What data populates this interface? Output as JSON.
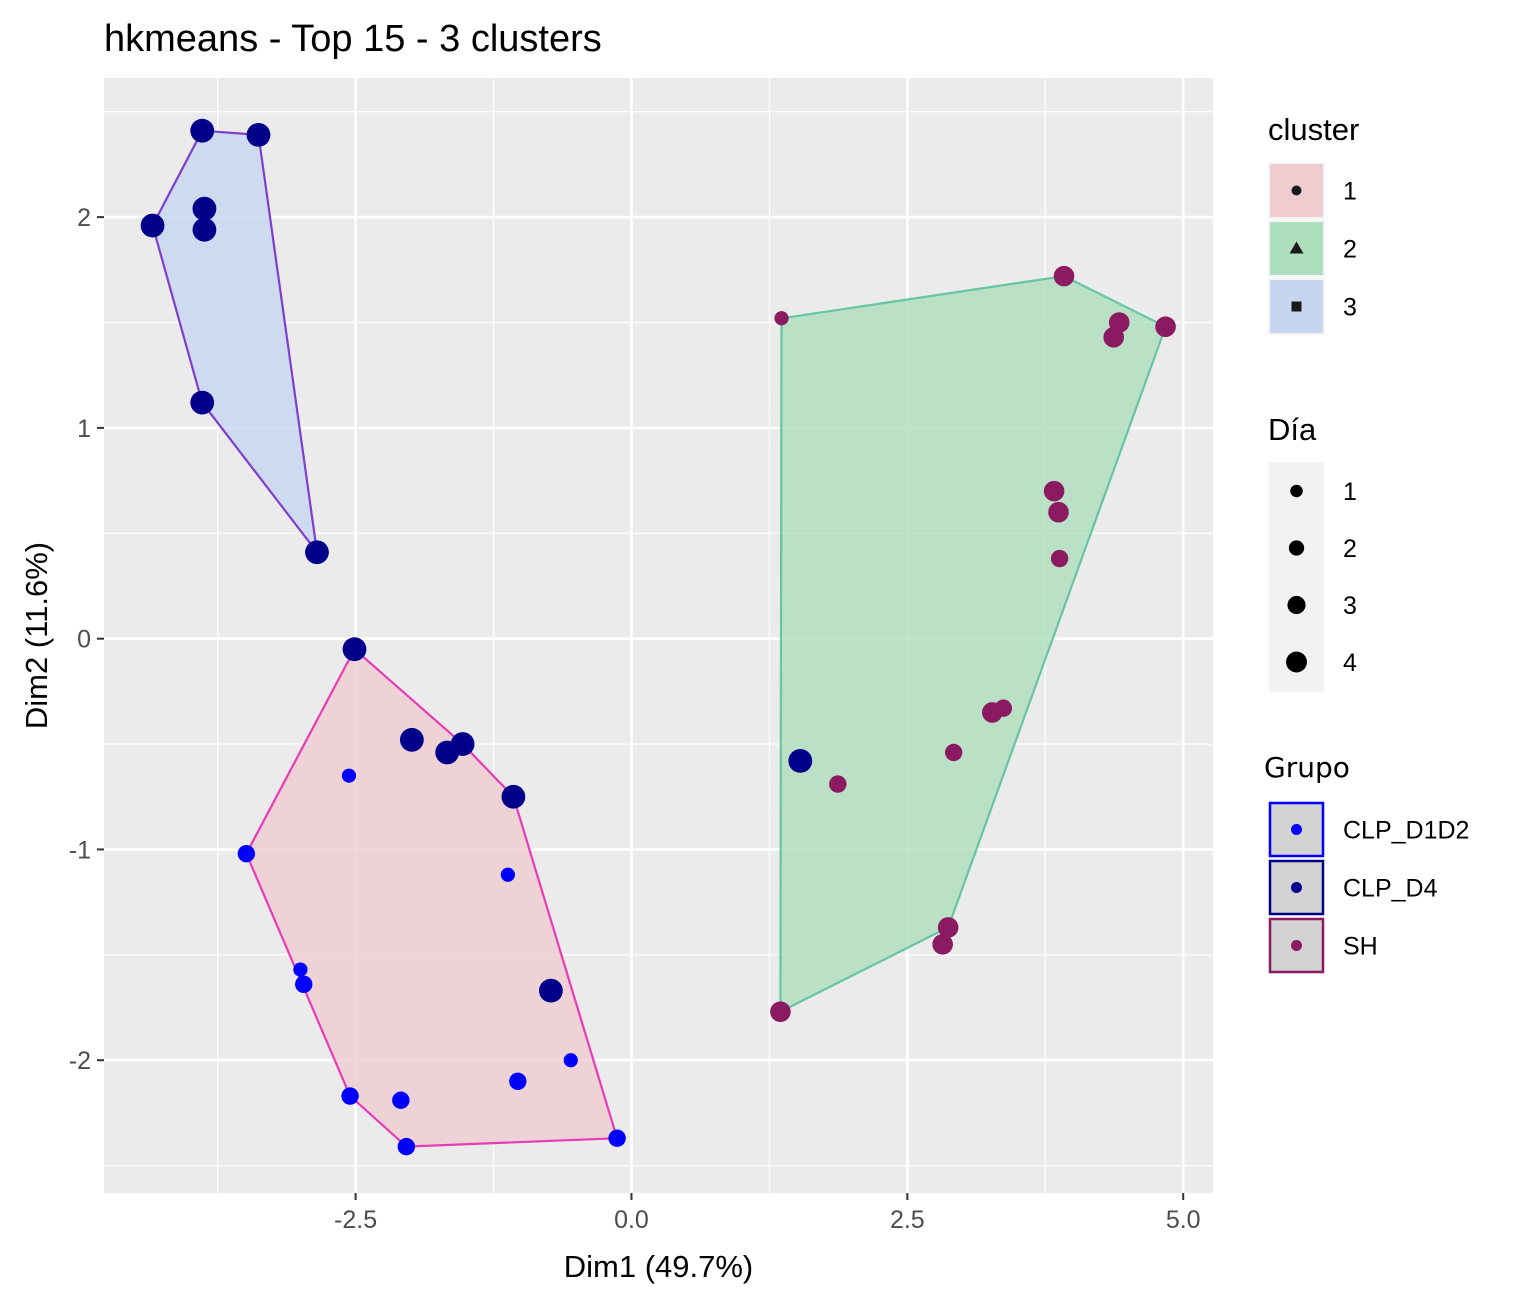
{
  "chart_data": {
    "type": "scatter",
    "title": "hkmeans - Top 15 - 3 clusters",
    "xlabel": "Dim1 (49.7%)",
    "ylabel": "Dim2 (11.6%)",
    "xlim": [
      -4.78,
      5.27
    ],
    "ylim": [
      -2.63,
      2.66
    ],
    "x_ticks": [
      -2.5,
      0.0,
      2.5,
      5.0
    ],
    "x_tick_labels": [
      "-2.5",
      "0.0",
      "2.5",
      "5.0"
    ],
    "y_ticks": [
      -2,
      -1,
      0,
      1,
      2
    ],
    "y_tick_labels": [
      "-2",
      "-1",
      "0",
      "1",
      "2"
    ],
    "grid": true,
    "legend_placement": "right",
    "colors": {
      "CLP_D1D2": "#0000ff",
      "CLP_D4": "#00008b",
      "SH": "#8b1a62",
      "cluster_1_fill": "#f0cccf",
      "cluster_1_line": "#e83bb6",
      "cluster_2_fill": "#aedfbd",
      "cluster_2_line": "#66c5a3",
      "cluster_3_fill": "#c6d6f0",
      "cluster_3_line": "#7f3ecb",
      "panel": "#ebebeb"
    },
    "hulls": [
      {
        "cluster": "1",
        "points": [
          [
            -2.51,
            -0.05
          ],
          [
            -1.53,
            -0.5
          ],
          [
            -1.07,
            -0.75
          ],
          [
            -0.13,
            -2.37
          ],
          [
            -2.04,
            -2.41
          ],
          [
            -2.55,
            -2.17
          ],
          [
            -3.49,
            -1.02
          ]
        ]
      },
      {
        "cluster": "2",
        "points": [
          [
            1.36,
            1.52
          ],
          [
            3.92,
            1.72
          ],
          [
            4.84,
            1.48
          ],
          [
            2.87,
            -1.37
          ],
          [
            1.35,
            -1.77
          ]
        ]
      },
      {
        "cluster": "3",
        "points": [
          [
            -3.89,
            2.41
          ],
          [
            -3.38,
            2.39
          ],
          [
            -2.85,
            0.41
          ],
          [
            -3.89,
            1.12
          ],
          [
            -4.34,
            1.96
          ]
        ]
      }
    ],
    "points": [
      {
        "x": -3.89,
        "y": 2.41,
        "grupo": "CLP_D4",
        "dia": 4
      },
      {
        "x": -3.38,
        "y": 2.39,
        "grupo": "CLP_D4",
        "dia": 4
      },
      {
        "x": -3.87,
        "y": 2.04,
        "grupo": "CLP_D4",
        "dia": 4
      },
      {
        "x": -3.87,
        "y": 1.94,
        "grupo": "CLP_D4",
        "dia": 4
      },
      {
        "x": -4.34,
        "y": 1.96,
        "grupo": "CLP_D4",
        "dia": 4
      },
      {
        "x": -3.89,
        "y": 1.12,
        "grupo": "CLP_D4",
        "dia": 4
      },
      {
        "x": -2.85,
        "y": 0.41,
        "grupo": "CLP_D4",
        "dia": 4
      },
      {
        "x": -2.51,
        "y": -0.05,
        "grupo": "CLP_D4",
        "dia": 4
      },
      {
        "x": -1.99,
        "y": -0.48,
        "grupo": "CLP_D4",
        "dia": 4
      },
      {
        "x": -1.67,
        "y": -0.54,
        "grupo": "CLP_D4",
        "dia": 4
      },
      {
        "x": -1.53,
        "y": -0.5,
        "grupo": "CLP_D4",
        "dia": 4
      },
      {
        "x": -1.07,
        "y": -0.75,
        "grupo": "CLP_D4",
        "dia": 4
      },
      {
        "x": -0.73,
        "y": -1.67,
        "grupo": "CLP_D4",
        "dia": 4
      },
      {
        "x": 1.53,
        "y": -0.58,
        "grupo": "CLP_D4",
        "dia": 4
      },
      {
        "x": -2.56,
        "y": -0.65,
        "grupo": "CLP_D1D2",
        "dia": 1
      },
      {
        "x": -3.49,
        "y": -1.02,
        "grupo": "CLP_D1D2",
        "dia": 2
      },
      {
        "x": -1.12,
        "y": -1.12,
        "grupo": "CLP_D1D2",
        "dia": 1
      },
      {
        "x": -3.0,
        "y": -1.57,
        "grupo": "CLP_D1D2",
        "dia": 1
      },
      {
        "x": -2.97,
        "y": -1.64,
        "grupo": "CLP_D1D2",
        "dia": 2
      },
      {
        "x": -0.55,
        "y": -2.0,
        "grupo": "CLP_D1D2",
        "dia": 1
      },
      {
        "x": -1.03,
        "y": -2.1,
        "grupo": "CLP_D1D2",
        "dia": 2
      },
      {
        "x": -2.55,
        "y": -2.17,
        "grupo": "CLP_D1D2",
        "dia": 2
      },
      {
        "x": -2.09,
        "y": -2.19,
        "grupo": "CLP_D1D2",
        "dia": 2
      },
      {
        "x": -2.04,
        "y": -2.41,
        "grupo": "CLP_D1D2",
        "dia": 2
      },
      {
        "x": -0.13,
        "y": -2.37,
        "grupo": "CLP_D1D2",
        "dia": 2
      },
      {
        "x": 1.36,
        "y": 1.52,
        "grupo": "SH",
        "dia": 1
      },
      {
        "x": 3.92,
        "y": 1.72,
        "grupo": "SH",
        "dia": 3
      },
      {
        "x": 4.42,
        "y": 1.5,
        "grupo": "SH",
        "dia": 3
      },
      {
        "x": 4.37,
        "y": 1.43,
        "grupo": "SH",
        "dia": 3
      },
      {
        "x": 4.84,
        "y": 1.48,
        "grupo": "SH",
        "dia": 3
      },
      {
        "x": 3.83,
        "y": 0.7,
        "grupo": "SH",
        "dia": 3
      },
      {
        "x": 3.87,
        "y": 0.6,
        "grupo": "SH",
        "dia": 3
      },
      {
        "x": 3.88,
        "y": 0.38,
        "grupo": "SH",
        "dia": 2
      },
      {
        "x": 3.27,
        "y": -0.35,
        "grupo": "SH",
        "dia": 3
      },
      {
        "x": 3.37,
        "y": -0.33,
        "grupo": "SH",
        "dia": 2
      },
      {
        "x": 2.92,
        "y": -0.54,
        "grupo": "SH",
        "dia": 2
      },
      {
        "x": 1.87,
        "y": -0.69,
        "grupo": "SH",
        "dia": 2
      },
      {
        "x": 2.87,
        "y": -1.37,
        "grupo": "SH",
        "dia": 3
      },
      {
        "x": 2.82,
        "y": -1.45,
        "grupo": "SH",
        "dia": 3
      },
      {
        "x": 1.35,
        "y": -1.77,
        "grupo": "SH",
        "dia": 3
      }
    ],
    "legends": {
      "cluster": {
        "title": "cluster",
        "items": [
          {
            "label": "1",
            "shape": "circle",
            "key_fill": "#f0cccf",
            "key_stroke": "#f5f5f5"
          },
          {
            "label": "2",
            "shape": "triangle",
            "key_fill": "#aedfbd",
            "key_stroke": "#f5f5f5"
          },
          {
            "label": "3",
            "shape": "square",
            "key_fill": "#c6d6f0",
            "key_stroke": "#f5f5f5"
          }
        ]
      },
      "dia": {
        "title": "Día",
        "items": [
          {
            "label": "1",
            "size": 1
          },
          {
            "label": "2",
            "size": 2
          },
          {
            "label": "3",
            "size": 3
          },
          {
            "label": "4",
            "size": 4
          }
        ]
      },
      "grupo": {
        "title": "Grupo",
        "items": [
          {
            "label": "CLP_D1D2",
            "color": "#0000ff"
          },
          {
            "label": "CLP_D4",
            "color": "#00008b"
          },
          {
            "label": "SH",
            "color": "#8b1a62"
          }
        ]
      }
    }
  }
}
